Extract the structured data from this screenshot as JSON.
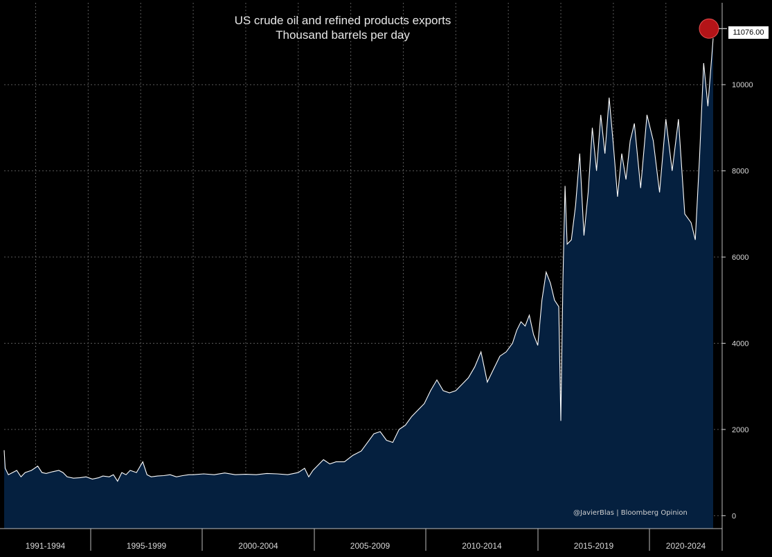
{
  "chart_data": {
    "type": "area",
    "title": "US crude oil and refined products exports",
    "subtitle": "Thousand barrels per day",
    "credit": "@JavierBlas | Bloomberg Opinion",
    "last_value_label": "11076.00",
    "x_period_labels": [
      "1991-1994",
      "1995-1999",
      "2000-2004",
      "2005-2009",
      "2010-2014",
      "2015-2019",
      "2020-2024"
    ],
    "y_ticks": [
      0,
      2000,
      4000,
      6000,
      8000,
      10000
    ],
    "ylim": [
      -300,
      11900
    ],
    "x_range": [
      1991.0,
      2024.75
    ],
    "grid": true,
    "colors": {
      "fill": "#05203f",
      "line": "#ffffff",
      "marker": "#c8161b",
      "grid": "#5a5a5a",
      "axis_text": "#d8d8d8"
    },
    "series": [
      {
        "name": "US crude oil and refined products exports",
        "x": [
          1991.0,
          1991.05,
          1991.2,
          1991.4,
          1991.6,
          1991.8,
          1992.0,
          1992.3,
          1992.6,
          1992.8,
          1993.0,
          1993.3,
          1993.6,
          1993.8,
          1994.0,
          1994.3,
          1994.6,
          1994.9,
          1995.2,
          1995.5,
          1995.7,
          1996.0,
          1996.2,
          1996.4,
          1996.6,
          1996.8,
          1997.0,
          1997.3,
          1997.6,
          1997.8,
          1998.0,
          1998.3,
          1998.6,
          1998.9,
          1999.2,
          1999.5,
          1999.8,
          2000.0,
          2000.5,
          2001.0,
          2001.5,
          2002.0,
          2002.5,
          2003.0,
          2003.5,
          2004.0,
          2004.5,
          2005.0,
          2005.3,
          2005.5,
          2005.7,
          2005.9,
          2006.2,
          2006.5,
          2006.8,
          2007.2,
          2007.6,
          2008.0,
          2008.3,
          2008.6,
          2008.9,
          2009.2,
          2009.5,
          2009.8,
          2010.1,
          2010.4,
          2010.7,
          2011.0,
          2011.3,
          2011.6,
          2011.9,
          2012.2,
          2012.5,
          2012.8,
          2013.1,
          2013.4,
          2013.7,
          2014.0,
          2014.3,
          2014.6,
          2014.9,
          2015.2,
          2015.4,
          2015.6,
          2015.8,
          2016.0,
          2016.2,
          2016.4,
          2016.6,
          2016.8,
          2017.0,
          2017.2,
          2017.4,
          2017.5,
          2017.6,
          2017.7,
          2017.8,
          2018.0,
          2018.2,
          2018.4,
          2018.6,
          2018.8,
          2019.0,
          2019.2,
          2019.4,
          2019.6,
          2019.8,
          2020.0,
          2020.2,
          2020.4,
          2020.6,
          2020.8,
          2021.0,
          2021.3,
          2021.6,
          2021.9,
          2022.2,
          2022.5,
          2022.8,
          2023.1,
          2023.4,
          2023.7,
          2023.9,
          2024.1,
          2024.3,
          2024.5,
          2024.75
        ],
        "values": [
          1520,
          1100,
          950,
          1000,
          1050,
          900,
          1000,
          1050,
          1150,
          1000,
          980,
          1020,
          1050,
          1000,
          900,
          870,
          880,
          900,
          850,
          880,
          920,
          900,
          950,
          800,
          1000,
          950,
          1050,
          1000,
          1250,
          950,
          900,
          920,
          930,
          950,
          900,
          930,
          950,
          950,
          970,
          950,
          990,
          950,
          960,
          950,
          980,
          970,
          950,
          1000,
          1100,
          900,
          1050,
          1150,
          1300,
          1200,
          1250,
          1250,
          1400,
          1500,
          1700,
          1900,
          1950,
          1750,
          1700,
          2000,
          2100,
          2300,
          2450,
          2600,
          2900,
          3150,
          2900,
          2850,
          2900,
          3050,
          3200,
          3450,
          3800,
          3100,
          3400,
          3700,
          3800,
          4000,
          4300,
          4500,
          4400,
          4650,
          4200,
          3950,
          5000,
          5650,
          5400,
          5000,
          4850,
          2200,
          5500,
          7650,
          6300,
          6400,
          7200,
          8400,
          6500,
          7500,
          9000,
          8000,
          9300,
          8400,
          9700,
          8600,
          7400,
          8400,
          7800,
          8700,
          9100,
          7600,
          9300,
          8700,
          7500,
          9200,
          8000,
          9200,
          7000,
          6800,
          6400,
          8300,
          10500,
          9500,
          11076
        ]
      }
    ]
  }
}
